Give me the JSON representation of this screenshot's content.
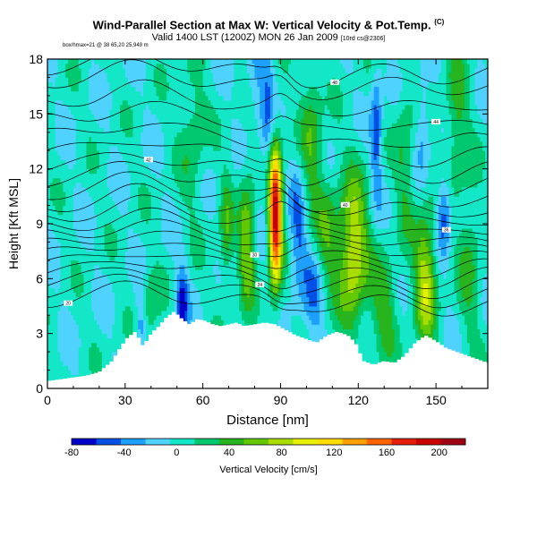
{
  "header": {
    "title": "Wind-Parallel Section at Max W: Vertical Velocity & Pot.Temp.",
    "title_mark": "(C)",
    "subtitle": "Valid 1400 LST (1200Z) MON 26 Jan 2009",
    "subtitle_note": "[10rd cs@2306]",
    "tiny_note": "box/hmax=21 @ 38 65,20 25,949 m"
  },
  "chart_data": {
    "type": "heatmap",
    "xlabel": "Distance [nm]",
    "ylabel": "Height [Kft MSL]",
    "xlim": [
      0,
      170
    ],
    "ylim": [
      0,
      18
    ],
    "xticks": [
      0,
      30,
      60,
      90,
      120,
      150
    ],
    "yticks": [
      0,
      3,
      6,
      9,
      12,
      15,
      18
    ],
    "colorbar": {
      "label": "Vertical Velocity [cm/s]",
      "ticks": [
        -80,
        -40,
        0,
        40,
        80,
        120,
        160,
        200
      ],
      "min": -80,
      "max": 220,
      "colors": [
        "#0000c8",
        "#0050e6",
        "#1ea0ff",
        "#50d2ff",
        "#14e6c8",
        "#00c86e",
        "#28b41e",
        "#64c800",
        "#aadc00",
        "#e6f000",
        "#ffdc00",
        "#ffa000",
        "#ff6400",
        "#e61e00",
        "#c80000",
        "#a00014"
      ]
    },
    "terrain": [
      [
        0,
        0.4
      ],
      [
        5,
        0.5
      ],
      [
        10,
        0.6
      ],
      [
        15,
        0.7
      ],
      [
        20,
        0.9
      ],
      [
        25,
        1.5
      ],
      [
        28,
        2.2
      ],
      [
        31,
        2.8
      ],
      [
        34,
        3.1
      ],
      [
        37,
        2.3
      ],
      [
        40,
        3.0
      ],
      [
        43,
        3.4
      ],
      [
        46,
        3.9
      ],
      [
        49,
        4.2
      ],
      [
        52,
        3.8
      ],
      [
        55,
        3.5
      ],
      [
        58,
        3.8
      ],
      [
        61,
        3.7
      ],
      [
        64,
        3.5
      ],
      [
        67,
        3.4
      ],
      [
        70,
        3.5
      ],
      [
        73,
        3.6
      ],
      [
        76,
        3.4
      ],
      [
        80,
        3.5
      ],
      [
        84,
        3.6
      ],
      [
        88,
        3.5
      ],
      [
        92,
        3.2
      ],
      [
        96,
        2.9
      ],
      [
        100,
        2.7
      ],
      [
        104,
        2.5
      ],
      [
        108,
        2.9
      ],
      [
        112,
        3.1
      ],
      [
        116,
        2.9
      ],
      [
        119,
        2.5
      ],
      [
        122,
        1.5
      ],
      [
        126,
        1.3
      ],
      [
        130,
        1.5
      ],
      [
        134,
        1.4
      ],
      [
        138,
        1.8
      ],
      [
        142,
        2.5
      ],
      [
        146,
        2.9
      ],
      [
        150,
        2.6
      ],
      [
        154,
        2.2
      ],
      [
        158,
        2.0
      ],
      [
        162,
        1.8
      ],
      [
        166,
        1.6
      ],
      [
        170,
        1.4
      ]
    ],
    "updrafts": [
      {
        "x": 88.0,
        "z": 9.5,
        "sx": 1.8,
        "sz": 2.7,
        "w": 200
      },
      {
        "x": 77.0,
        "z": 8.0,
        "sx": 2.2,
        "sz": 2.5,
        "w": 70
      },
      {
        "x": 69.0,
        "z": 8.5,
        "sx": 1.8,
        "sz": 2.2,
        "w": 45
      },
      {
        "x": 118.0,
        "z": 7.5,
        "sx": 4.0,
        "sz": 2.8,
        "w": 95
      },
      {
        "x": 146.0,
        "z": 6.0,
        "sx": 3.0,
        "sz": 2.5,
        "w": 85
      },
      {
        "x": 130.0,
        "z": 4.5,
        "sx": 3.5,
        "sz": 2.0,
        "w": 45
      },
      {
        "x": 102.0,
        "z": 13.5,
        "sx": 3.0,
        "sz": 3.5,
        "w": 45
      },
      {
        "x": 138.0,
        "z": 12.5,
        "sx": 2.5,
        "sz": 3.0,
        "w": 35
      },
      {
        "x": 158.0,
        "z": 15.0,
        "sx": 3.0,
        "sz": 3.0,
        "w": 40
      },
      {
        "x": 56.0,
        "z": 14.0,
        "sx": 3.5,
        "sz": 3.0,
        "w": 30
      },
      {
        "x": 108.0,
        "z": 8.0,
        "sx": 3.0,
        "sz": 2.5,
        "w": 40
      },
      {
        "x": 163.0,
        "z": 7.0,
        "sx": 3.0,
        "sz": 3.0,
        "w": 35
      },
      {
        "x": 40.0,
        "z": 4.5,
        "sx": 2.5,
        "sz": 1.5,
        "w": 30
      }
    ],
    "downdrafts": [
      {
        "x": 52.0,
        "z": 4.5,
        "sx": 1.6,
        "sz": 1.5,
        "w": 70
      },
      {
        "x": 97.0,
        "z": 8.5,
        "sx": 2.5,
        "sz": 2.5,
        "w": 45
      },
      {
        "x": 103.0,
        "z": 5.0,
        "sx": 3.0,
        "sz": 2.0,
        "w": 40
      },
      {
        "x": 127.0,
        "z": 14.0,
        "sx": 1.5,
        "sz": 2.5,
        "w": 55
      },
      {
        "x": 153.0,
        "z": 9.5,
        "sx": 2.0,
        "sz": 1.5,
        "w": 60
      },
      {
        "x": 85.0,
        "z": 15.0,
        "sx": 2.0,
        "sz": 3.0,
        "w": 40
      },
      {
        "x": 36.0,
        "z": 3.5,
        "sx": 1.2,
        "sz": 1.2,
        "w": 40
      },
      {
        "x": 145.0,
        "z": 14.5,
        "sx": 2.0,
        "sz": 2.0,
        "w": 30
      },
      {
        "x": 80.0,
        "z": 17.0,
        "sx": 2.5,
        "sz": 1.5,
        "w": 30
      }
    ],
    "theta_levels": [
      {
        "base": 4.8,
        "label": "20"
      },
      {
        "base": 5.3,
        "label": ""
      },
      {
        "base": 5.8,
        "label": "24"
      },
      {
        "base": 6.3,
        "label": ""
      },
      {
        "base": 6.8,
        "label": ""
      },
      {
        "base": 7.3,
        "label": ""
      },
      {
        "base": 7.8,
        "label": "30"
      },
      {
        "base": 8.3,
        "label": ""
      },
      {
        "base": 8.8,
        "label": "36"
      },
      {
        "base": 9.4,
        "label": ""
      },
      {
        "base": 10.0,
        "label": ""
      },
      {
        "base": 10.7,
        "label": "40"
      },
      {
        "base": 11.4,
        "label": ""
      },
      {
        "base": 12.1,
        "label": "42"
      },
      {
        "base": 12.9,
        "label": ""
      },
      {
        "base": 13.8,
        "label": ""
      },
      {
        "base": 14.7,
        "label": "44"
      },
      {
        "base": 15.7,
        "label": ""
      },
      {
        "base": 16.8,
        "label": ""
      },
      {
        "base": 17.5,
        "label": "48"
      }
    ]
  }
}
